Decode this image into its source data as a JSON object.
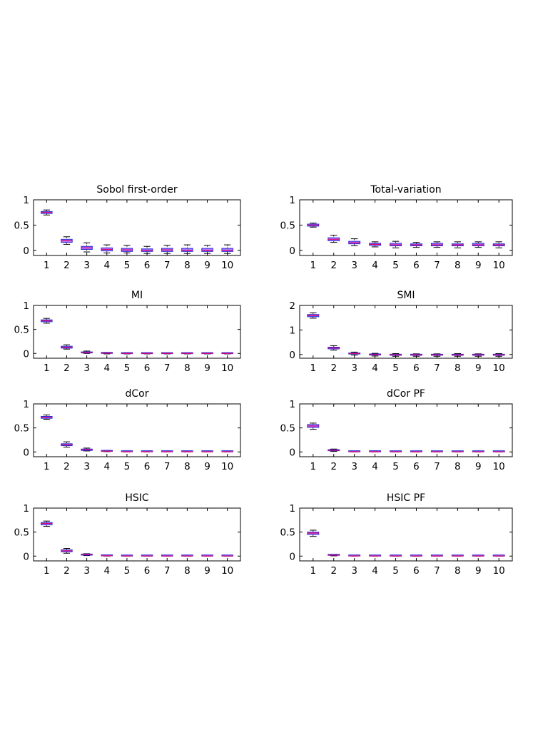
{
  "chart_data": [
    {
      "type": "box",
      "title": "Sobol first-order",
      "categories": [
        "1",
        "2",
        "3",
        "4",
        "5",
        "6",
        "7",
        "8",
        "9",
        "10"
      ],
      "yticks": [
        "0",
        "0.5",
        "1"
      ],
      "ylim": [
        -0.1,
        1
      ],
      "boxes": [
        {
          "min": 0.7,
          "q1": 0.73,
          "median": 0.75,
          "q3": 0.77,
          "max": 0.8
        },
        {
          "min": 0.12,
          "q1": 0.16,
          "median": 0.19,
          "q3": 0.22,
          "max": 0.27
        },
        {
          "min": -0.03,
          "q1": 0.02,
          "median": 0.05,
          "q3": 0.08,
          "max": 0.15
        },
        {
          "min": -0.05,
          "q1": -0.01,
          "median": 0.02,
          "q3": 0.05,
          "max": 0.11
        },
        {
          "min": -0.05,
          "q1": -0.02,
          "median": 0.01,
          "q3": 0.04,
          "max": 0.1
        },
        {
          "min": -0.06,
          "q1": -0.02,
          "median": 0.0,
          "q3": 0.03,
          "max": 0.08
        },
        {
          "min": -0.06,
          "q1": -0.02,
          "median": 0.01,
          "q3": 0.04,
          "max": 0.1
        },
        {
          "min": -0.06,
          "q1": -0.02,
          "median": 0.0,
          "q3": 0.04,
          "max": 0.11
        },
        {
          "min": -0.06,
          "q1": -0.02,
          "median": 0.0,
          "q3": 0.04,
          "max": 0.1
        },
        {
          "min": -0.06,
          "q1": -0.02,
          "median": 0.0,
          "q3": 0.04,
          "max": 0.11
        }
      ]
    },
    {
      "type": "box",
      "title": "Total-variation",
      "categories": [
        "1",
        "2",
        "3",
        "4",
        "5",
        "6",
        "7",
        "8",
        "9",
        "10"
      ],
      "yticks": [
        "0",
        "0.5",
        "1"
      ],
      "ylim": [
        -0.1,
        1
      ],
      "boxes": [
        {
          "min": 0.46,
          "q1": 0.48,
          "median": 0.5,
          "q3": 0.52,
          "max": 0.54
        },
        {
          "min": 0.16,
          "q1": 0.19,
          "median": 0.22,
          "q3": 0.25,
          "max": 0.3
        },
        {
          "min": 0.09,
          "q1": 0.13,
          "median": 0.15,
          "q3": 0.18,
          "max": 0.23
        },
        {
          "min": 0.07,
          "q1": 0.1,
          "median": 0.12,
          "q3": 0.14,
          "max": 0.17
        },
        {
          "min": 0.05,
          "q1": 0.09,
          "median": 0.11,
          "q3": 0.14,
          "max": 0.18
        },
        {
          "min": 0.06,
          "q1": 0.09,
          "median": 0.11,
          "q3": 0.13,
          "max": 0.16
        },
        {
          "min": 0.06,
          "q1": 0.09,
          "median": 0.11,
          "q3": 0.14,
          "max": 0.17
        },
        {
          "min": 0.05,
          "q1": 0.09,
          "median": 0.11,
          "q3": 0.13,
          "max": 0.17
        },
        {
          "min": 0.06,
          "q1": 0.09,
          "median": 0.11,
          "q3": 0.14,
          "max": 0.17
        },
        {
          "min": 0.05,
          "q1": 0.09,
          "median": 0.11,
          "q3": 0.13,
          "max": 0.17
        }
      ]
    },
    {
      "type": "box",
      "title": "MI",
      "categories": [
        "1",
        "2",
        "3",
        "4",
        "5",
        "6",
        "7",
        "8",
        "9",
        "10"
      ],
      "yticks": [
        "0",
        "0.5",
        "1"
      ],
      "ylim": [
        -0.1,
        1
      ],
      "boxes": [
        {
          "min": 0.63,
          "q1": 0.66,
          "median": 0.68,
          "q3": 0.7,
          "max": 0.73
        },
        {
          "min": 0.09,
          "q1": 0.11,
          "median": 0.13,
          "q3": 0.15,
          "max": 0.18
        },
        {
          "min": 0.0,
          "q1": 0.01,
          "median": 0.02,
          "q3": 0.03,
          "max": 0.05
        },
        {
          "min": -0.01,
          "q1": 0.0,
          "median": 0.005,
          "q3": 0.01,
          "max": 0.02
        },
        {
          "min": -0.01,
          "q1": -0.005,
          "median": 0.0,
          "q3": 0.005,
          "max": 0.015
        },
        {
          "min": -0.01,
          "q1": -0.005,
          "median": 0.0,
          "q3": 0.005,
          "max": 0.01
        },
        {
          "min": -0.01,
          "q1": -0.005,
          "median": 0.0,
          "q3": 0.005,
          "max": 0.01
        },
        {
          "min": -0.01,
          "q1": -0.005,
          "median": 0.0,
          "q3": 0.005,
          "max": 0.01
        },
        {
          "min": -0.01,
          "q1": -0.005,
          "median": 0.0,
          "q3": 0.005,
          "max": 0.01
        },
        {
          "min": -0.01,
          "q1": -0.005,
          "median": 0.0,
          "q3": 0.005,
          "max": 0.01
        }
      ]
    },
    {
      "type": "box",
      "title": "SMI",
      "categories": [
        "1",
        "2",
        "3",
        "4",
        "5",
        "6",
        "7",
        "8",
        "9",
        "10"
      ],
      "yticks": [
        "0",
        "1",
        "2"
      ],
      "ylim": [
        -0.15,
        2
      ],
      "boxes": [
        {
          "min": 1.48,
          "q1": 1.54,
          "median": 1.59,
          "q3": 1.63,
          "max": 1.7
        },
        {
          "min": 0.18,
          "q1": 0.23,
          "median": 0.27,
          "q3": 0.3,
          "max": 0.36
        },
        {
          "min": -0.02,
          "q1": 0.02,
          "median": 0.04,
          "q3": 0.06,
          "max": 0.1
        },
        {
          "min": -0.06,
          "q1": -0.02,
          "median": 0.0,
          "q3": 0.02,
          "max": 0.05
        },
        {
          "min": -0.07,
          "q1": -0.03,
          "median": -0.01,
          "q3": 0.01,
          "max": 0.04
        },
        {
          "min": -0.07,
          "q1": -0.03,
          "median": -0.01,
          "q3": 0.01,
          "max": 0.03
        },
        {
          "min": -0.07,
          "q1": -0.03,
          "median": -0.01,
          "q3": 0.01,
          "max": 0.03
        },
        {
          "min": -0.07,
          "q1": -0.03,
          "median": -0.01,
          "q3": 0.01,
          "max": 0.04
        },
        {
          "min": -0.07,
          "q1": -0.03,
          "median": -0.01,
          "q3": 0.01,
          "max": 0.03
        },
        {
          "min": -0.07,
          "q1": -0.03,
          "median": -0.01,
          "q3": 0.01,
          "max": 0.04
        }
      ]
    },
    {
      "type": "box",
      "title": "dCor",
      "categories": [
        "1",
        "2",
        "3",
        "4",
        "5",
        "6",
        "7",
        "8",
        "9",
        "10"
      ],
      "yticks": [
        "0",
        "0.5",
        "1"
      ],
      "ylim": [
        -0.1,
        1
      ],
      "boxes": [
        {
          "min": 0.68,
          "q1": 0.7,
          "median": 0.72,
          "q3": 0.74,
          "max": 0.77
        },
        {
          "min": 0.1,
          "q1": 0.13,
          "median": 0.15,
          "q3": 0.17,
          "max": 0.21
        },
        {
          "min": 0.02,
          "q1": 0.03,
          "median": 0.045,
          "q3": 0.06,
          "max": 0.08
        },
        {
          "min": 0.005,
          "q1": 0.01,
          "median": 0.015,
          "q3": 0.02,
          "max": 0.03
        },
        {
          "min": 0.0,
          "q1": 0.002,
          "median": 0.004,
          "q3": 0.006,
          "max": 0.01
        },
        {
          "min": 0.0,
          "q1": 0.002,
          "median": 0.004,
          "q3": 0.006,
          "max": 0.01
        },
        {
          "min": 0.0,
          "q1": 0.002,
          "median": 0.004,
          "q3": 0.006,
          "max": 0.01
        },
        {
          "min": 0.0,
          "q1": 0.002,
          "median": 0.004,
          "q3": 0.006,
          "max": 0.01
        },
        {
          "min": 0.0,
          "q1": 0.002,
          "median": 0.004,
          "q3": 0.006,
          "max": 0.01
        },
        {
          "min": 0.0,
          "q1": 0.002,
          "median": 0.004,
          "q3": 0.006,
          "max": 0.01
        }
      ]
    },
    {
      "type": "box",
      "title": "dCor PF",
      "categories": [
        "1",
        "2",
        "3",
        "4",
        "5",
        "6",
        "7",
        "8",
        "9",
        "10"
      ],
      "yticks": [
        "0",
        "0.5",
        "1"
      ],
      "ylim": [
        -0.1,
        1
      ],
      "boxes": [
        {
          "min": 0.47,
          "q1": 0.51,
          "median": 0.54,
          "q3": 0.57,
          "max": 0.6
        },
        {
          "min": 0.01,
          "q1": 0.025,
          "median": 0.035,
          "q3": 0.045,
          "max": 0.06
        },
        {
          "min": 0.0,
          "q1": 0.002,
          "median": 0.004,
          "q3": 0.006,
          "max": 0.01
        },
        {
          "min": 0.0,
          "q1": 0.002,
          "median": 0.004,
          "q3": 0.006,
          "max": 0.01
        },
        {
          "min": 0.0,
          "q1": 0.001,
          "median": 0.003,
          "q3": 0.005,
          "max": 0.008
        },
        {
          "min": 0.0,
          "q1": 0.001,
          "median": 0.003,
          "q3": 0.005,
          "max": 0.008
        },
        {
          "min": 0.0,
          "q1": 0.001,
          "median": 0.003,
          "q3": 0.005,
          "max": 0.008
        },
        {
          "min": 0.0,
          "q1": 0.001,
          "median": 0.003,
          "q3": 0.005,
          "max": 0.008
        },
        {
          "min": 0.0,
          "q1": 0.001,
          "median": 0.003,
          "q3": 0.005,
          "max": 0.008
        },
        {
          "min": 0.0,
          "q1": 0.001,
          "median": 0.003,
          "q3": 0.005,
          "max": 0.008
        }
      ]
    },
    {
      "type": "box",
      "title": "HSIC",
      "categories": [
        "1",
        "2",
        "3",
        "4",
        "5",
        "6",
        "7",
        "8",
        "9",
        "10"
      ],
      "yticks": [
        "0",
        "0.5",
        "1"
      ],
      "ylim": [
        -0.1,
        1
      ],
      "boxes": [
        {
          "min": 0.62,
          "q1": 0.65,
          "median": 0.68,
          "q3": 0.7,
          "max": 0.73
        },
        {
          "min": 0.06,
          "q1": 0.09,
          "median": 0.11,
          "q3": 0.13,
          "max": 0.16
        },
        {
          "min": 0.01,
          "q1": 0.02,
          "median": 0.03,
          "q3": 0.04,
          "max": 0.05
        },
        {
          "min": 0.0,
          "q1": 0.004,
          "median": 0.007,
          "q3": 0.01,
          "max": 0.015
        },
        {
          "min": 0.0,
          "q1": 0.001,
          "median": 0.002,
          "q3": 0.003,
          "max": 0.005
        },
        {
          "min": 0.0,
          "q1": 0.001,
          "median": 0.002,
          "q3": 0.003,
          "max": 0.005
        },
        {
          "min": 0.0,
          "q1": 0.001,
          "median": 0.002,
          "q3": 0.003,
          "max": 0.005
        },
        {
          "min": 0.0,
          "q1": 0.001,
          "median": 0.002,
          "q3": 0.003,
          "max": 0.005
        },
        {
          "min": 0.0,
          "q1": 0.001,
          "median": 0.002,
          "q3": 0.003,
          "max": 0.005
        },
        {
          "min": 0.0,
          "q1": 0.001,
          "median": 0.002,
          "q3": 0.003,
          "max": 0.005
        }
      ]
    },
    {
      "type": "box",
      "title": "HSIC PF",
      "categories": [
        "1",
        "2",
        "3",
        "4",
        "5",
        "6",
        "7",
        "8",
        "9",
        "10"
      ],
      "yticks": [
        "0",
        "0.5",
        "1"
      ],
      "ylim": [
        -0.1,
        1
      ],
      "boxes": [
        {
          "min": 0.41,
          "q1": 0.45,
          "median": 0.48,
          "q3": 0.5,
          "max": 0.54
        },
        {
          "min": 0.005,
          "q1": 0.015,
          "median": 0.02,
          "q3": 0.025,
          "max": 0.035
        },
        {
          "min": 0.0,
          "q1": 0.002,
          "median": 0.004,
          "q3": 0.006,
          "max": 0.01
        },
        {
          "min": 0.0,
          "q1": 0.001,
          "median": 0.003,
          "q3": 0.005,
          "max": 0.008
        },
        {
          "min": 0.0,
          "q1": 0.001,
          "median": 0.002,
          "q3": 0.003,
          "max": 0.005
        },
        {
          "min": 0.0,
          "q1": 0.001,
          "median": 0.002,
          "q3": 0.003,
          "max": 0.005
        },
        {
          "min": 0.0,
          "q1": 0.001,
          "median": 0.002,
          "q3": 0.003,
          "max": 0.005
        },
        {
          "min": 0.0,
          "q1": 0.001,
          "median": 0.002,
          "q3": 0.003,
          "max": 0.005
        },
        {
          "min": 0.0,
          "q1": 0.001,
          "median": 0.002,
          "q3": 0.003,
          "max": 0.005
        },
        {
          "min": 0.0,
          "q1": 0.001,
          "median": 0.002,
          "q3": 0.003,
          "max": 0.005
        }
      ]
    }
  ],
  "style": {
    "box_fill": "#b27fff",
    "box_edge": "#2a2ad8",
    "median_color": "#e0006e",
    "whisker_color": "#000000",
    "axes_color": "#000000"
  }
}
